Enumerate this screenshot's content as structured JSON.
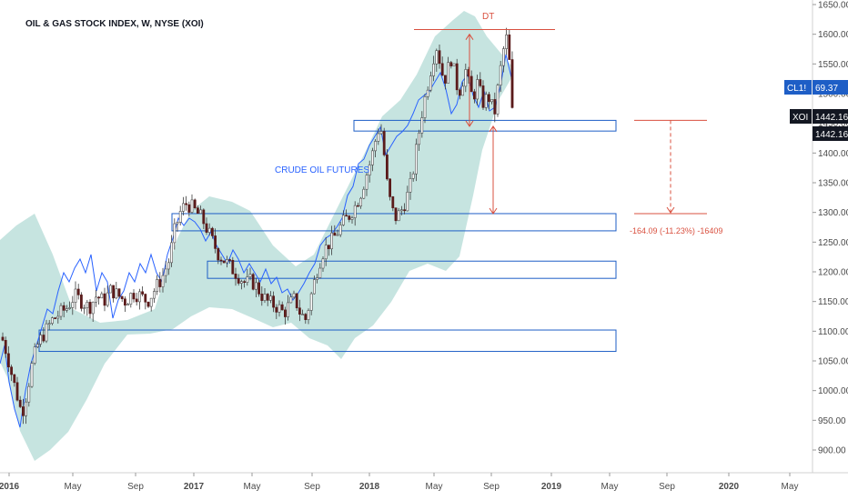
{
  "chart_data": {
    "type": "candlestick",
    "title": "OIL & GAS STOCK INDEX, W, NYSE (XOI)",
    "annotations": {
      "crude_label": "CRUDE OIL FUTURES",
      "dt_label": "DT",
      "measure_label": "-164.09 (-11.23%) -16409"
    },
    "price_badges": [
      {
        "symbol": "CL1!",
        "value": "69.37",
        "color": "#1e5ec6"
      },
      {
        "symbol": "XOI",
        "value": "1442.16",
        "color": "#131722"
      },
      {
        "symbol": "",
        "value": "1442.16",
        "color": "#131722"
      }
    ],
    "y_axis": {
      "min": 875,
      "max": 1660,
      "ticks": [
        "1650.00",
        "1600.00",
        "1550.00",
        "1500.00",
        "1450.00",
        "1400.00",
        "1350.00",
        "1300.00",
        "1250.00",
        "1200.00",
        "1150.00",
        "1100.00",
        "1050.00",
        "1000.00",
        "950.00",
        "900.00"
      ],
      "tick_values": [
        1650,
        1600,
        1550,
        1500,
        1450,
        1400,
        1350,
        1300,
        1250,
        1200,
        1150,
        1100,
        1050,
        1000,
        950,
        900
      ]
    },
    "x_axis": {
      "ticks": [
        {
          "label": "2016",
          "year": true
        },
        {
          "label": "May",
          "year": false
        },
        {
          "label": "Sep",
          "year": false
        },
        {
          "label": "2017",
          "year": true
        },
        {
          "label": "May",
          "year": false
        },
        {
          "label": "Sep",
          "year": false
        },
        {
          "label": "2018",
          "year": true
        },
        {
          "label": "May",
          "year": false
        },
        {
          "label": "Sep",
          "year": false
        },
        {
          "label": "2019",
          "year": true
        },
        {
          "label": "May",
          "year": false
        },
        {
          "label": "Sep",
          "year": false
        },
        {
          "label": "2020",
          "year": true
        },
        {
          "label": "May",
          "year": false
        }
      ]
    },
    "levels": {
      "dt_top": 1608,
      "measure_top": 1455,
      "measure_bottom": 1298,
      "left_arrow_top": 1600,
      "left_arrow_bottom": 1445,
      "right_arrow_top": 1445,
      "right_arrow_bottom": 1298
    },
    "zones": [
      {
        "name": "zone-1450",
        "top": 1455,
        "bottom": 1437
      },
      {
        "name": "zone-1290",
        "top": 1298,
        "bottom": 1269
      },
      {
        "name": "zone-1200",
        "top": 1218,
        "bottom": 1189
      },
      {
        "name": "zone-1090",
        "top": 1102,
        "bottom": 1066
      }
    ],
    "colors": {
      "bull": "#ffffff",
      "bear": "#5a1a1a",
      "wick": "#3d3d3d",
      "crude_line": "#2962ff",
      "band_fill": "#a8d5d0",
      "zone_stroke": "#1e5ec6",
      "annotation": "#d9503f"
    }
  }
}
